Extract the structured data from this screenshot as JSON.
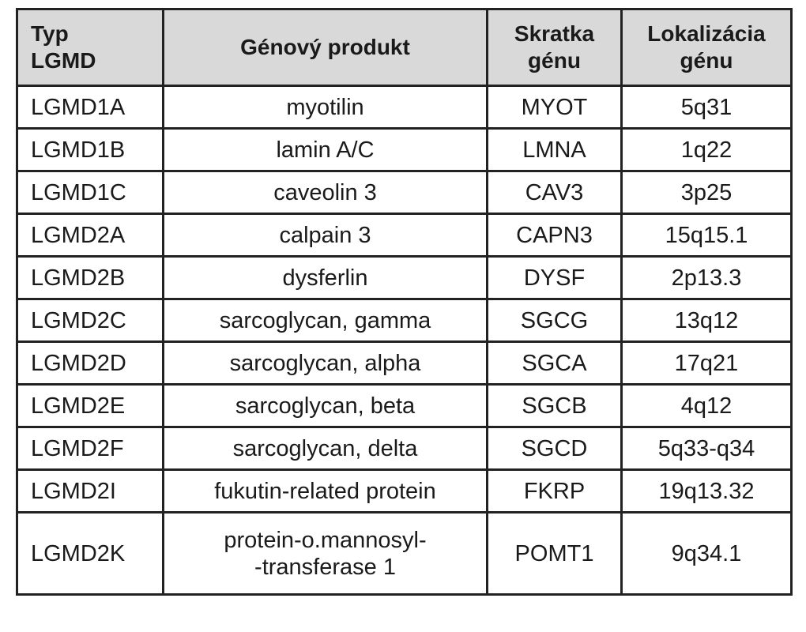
{
  "table": {
    "header": [
      [
        "Typ",
        "LGMD"
      ],
      [
        "Génový produkt"
      ],
      [
        "Skratka",
        "génu"
      ],
      [
        "Lokalizácia",
        "génu"
      ]
    ],
    "rows": [
      [
        "LGMD1A",
        "myotilin",
        "MYOT",
        "5q31"
      ],
      [
        "LGMD1B",
        "lamin A/C",
        "LMNA",
        "1q22"
      ],
      [
        "LGMD1C",
        "caveolin 3",
        "CAV3",
        "3p25"
      ],
      [
        "LGMD2A",
        "calpain 3",
        "CAPN3",
        "15q15.1"
      ],
      [
        "LGMD2B",
        "dysferlin",
        "DYSF",
        "2p13.3"
      ],
      [
        "LGMD2C",
        "sarcoglycan, gamma",
        "SGCG",
        "13q12"
      ],
      [
        "LGMD2D",
        "sarcoglycan, alpha",
        "SGCA",
        "17q21"
      ],
      [
        "LGMD2E",
        "sarcoglycan, beta",
        "SGCB",
        "4q12"
      ],
      [
        "LGMD2F",
        "sarcoglycan, delta",
        "SGCD",
        "5q33-q34"
      ],
      [
        "LGMD2I",
        "fukutin-related protein",
        "FKRP",
        "19q13.32"
      ],
      [
        "LGMD2K",
        [
          "protein-o.mannosyl-",
          "-transferase 1"
        ],
        "POMT1",
        "9q34.1"
      ]
    ]
  }
}
